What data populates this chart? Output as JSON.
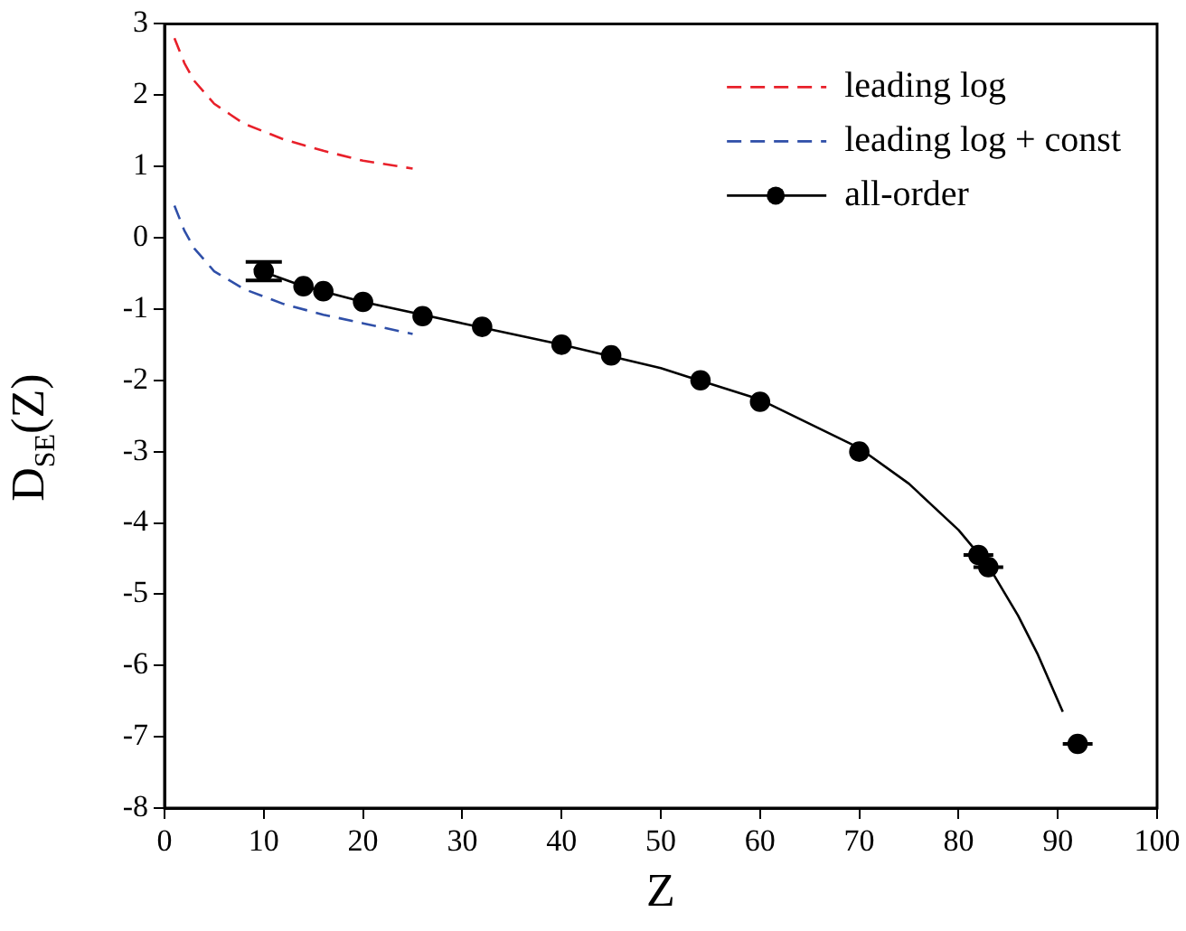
{
  "chart_data": {
    "type": "line",
    "xlabel": "Z",
    "ylabel": "D$_{SE}$(Z)",
    "xlim": [
      0,
      100
    ],
    "ylim": [
      -8,
      3
    ],
    "xticks": [
      0,
      10,
      20,
      30,
      40,
      50,
      60,
      70,
      80,
      90,
      100
    ],
    "yticks": [
      -8,
      -7,
      -6,
      -5,
      -4,
      -3,
      -2,
      -1,
      0,
      1,
      2,
      3
    ],
    "grid": false,
    "legend": "top right",
    "series": [
      {
        "name": "leading log",
        "color": "#e8202a",
        "line_style": "dashed",
        "marker": "none",
        "x": [
          1,
          2,
          3,
          5,
          8,
          12,
          16,
          20,
          25
        ],
        "values": [
          2.8,
          2.45,
          2.2,
          1.88,
          1.6,
          1.38,
          1.22,
          1.08,
          0.97
        ]
      },
      {
        "name": "leading log + const",
        "color": "#2f4fa8",
        "line_style": "dashed",
        "marker": "none",
        "x": [
          1,
          2,
          3,
          5,
          8,
          12,
          16,
          20,
          25
        ],
        "values": [
          0.45,
          0.1,
          -0.15,
          -0.47,
          -0.72,
          -0.93,
          -1.08,
          -1.2,
          -1.35
        ]
      },
      {
        "color": "#000000",
        "line_style": "solid",
        "marker": "none",
        "x": [
          9,
          14,
          20,
          30,
          40,
          50,
          60,
          70,
          75,
          80,
          83,
          86,
          88,
          90.5
        ],
        "values": [
          -0.43,
          -0.68,
          -0.9,
          -1.2,
          -1.5,
          -1.83,
          -2.27,
          -2.95,
          -3.45,
          -4.1,
          -4.6,
          -5.3,
          -5.85,
          -6.65
        ]
      },
      {
        "name": "all-order",
        "type": "scatter",
        "color": "#000000",
        "marker": "circle",
        "x": [
          10,
          14,
          16,
          20,
          26,
          32,
          40,
          45,
          54,
          60,
          70,
          82,
          83,
          92
        ],
        "values": [
          -0.47,
          -0.68,
          -0.75,
          -0.9,
          -1.1,
          -1.25,
          -1.5,
          -1.65,
          -2.0,
          -2.3,
          -3.0,
          -4.45,
          -4.62,
          -7.1
        ],
        "errors": [
          0.13,
          null,
          null,
          null,
          null,
          null,
          null,
          null,
          null,
          null,
          null,
          null,
          null,
          null
        ],
        "xerrors": [
          null,
          null,
          null,
          null,
          null,
          null,
          null,
          null,
          null,
          null,
          null,
          1.5,
          1.5,
          1.5
        ]
      }
    ]
  }
}
